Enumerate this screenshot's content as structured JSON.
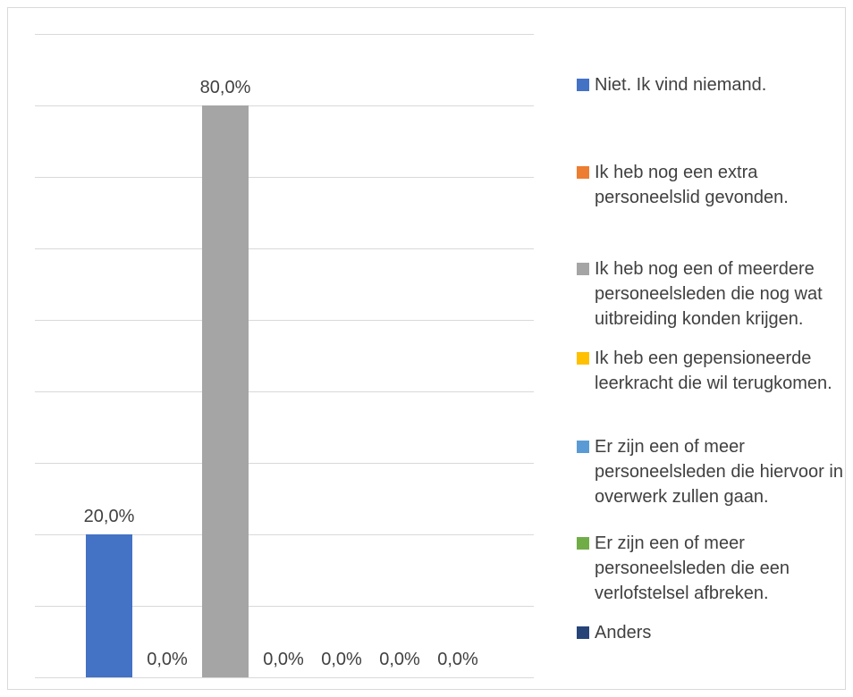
{
  "chart_data": {
    "type": "bar",
    "title": "",
    "xlabel": "",
    "ylabel": "",
    "ylim": [
      0,
      90
    ],
    "grid": true,
    "legend_position": "right",
    "categories": [
      ""
    ],
    "series": [
      {
        "name": "Niet. Ik vind niemand.",
        "values": [
          20.0
        ],
        "label": "20,0%",
        "color": "#4472C4"
      },
      {
        "name": "Ik heb nog een extra personeelslid gevonden.",
        "values": [
          0.0
        ],
        "label": "0,0%",
        "color": "#ED7D31"
      },
      {
        "name": "Ik heb nog een of meerdere personeelsleden die nog wat uitbreiding konden krijgen.",
        "values": [
          80.0
        ],
        "label": "80,0%",
        "color": "#A5A5A5"
      },
      {
        "name": "Ik heb een gepensioneerde leerkracht die wil terugkomen.",
        "values": [
          0.0
        ],
        "label": "0,0%",
        "color": "#FFC000"
      },
      {
        "name": "Er zijn een of meer personeelsleden die hiervoor in overwerk zullen gaan.",
        "values": [
          0.0
        ],
        "label": "0,0%",
        "color": "#5B9BD5"
      },
      {
        "name": "Er zijn een of meer personeelsleden die een verlofstelsel afbreken.",
        "values": [
          0.0
        ],
        "label": "0,0%",
        "color": "#70AD47"
      },
      {
        "name": "Anders",
        "values": [
          0.0
        ],
        "label": "0,0%",
        "color": "#264478"
      }
    ]
  }
}
